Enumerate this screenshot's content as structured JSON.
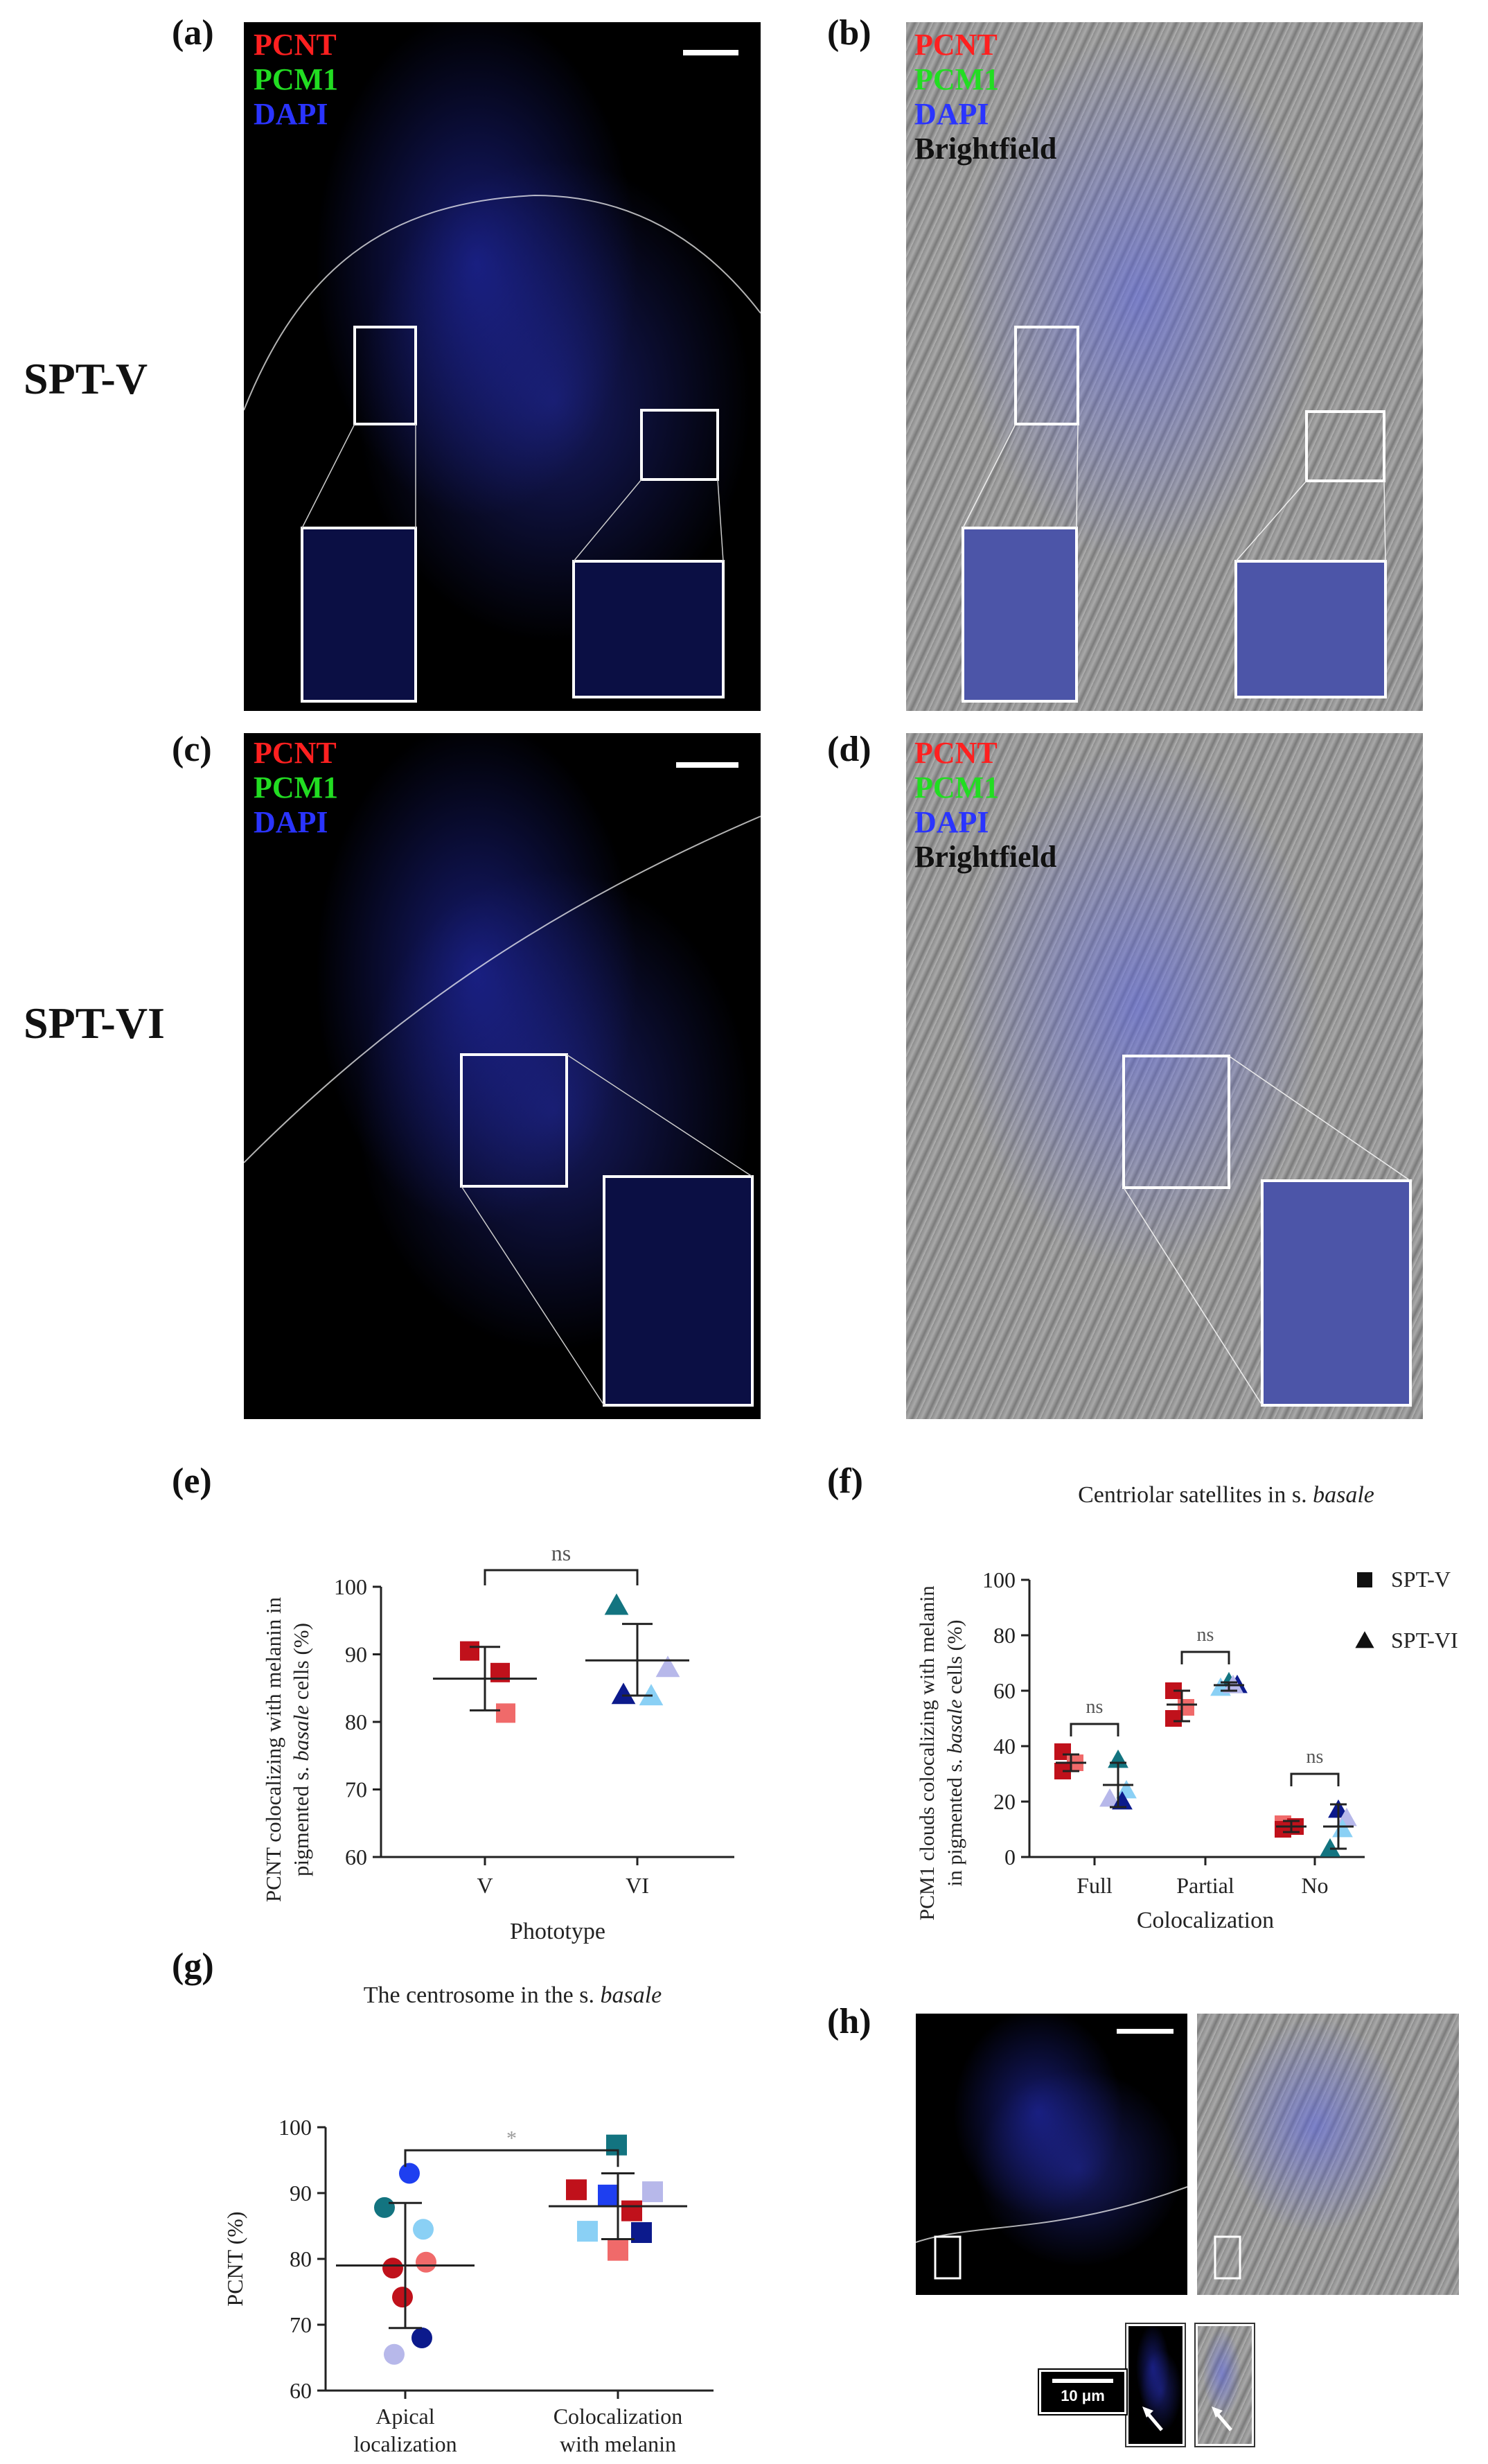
{
  "panels": {
    "a": {
      "letter": "(a)",
      "channels": [
        "PCNT",
        "PCM1",
        "DAPI"
      ]
    },
    "b": {
      "letter": "(b)",
      "channels": [
        "PCNT",
        "PCM1",
        "DAPI",
        "Brightfield"
      ]
    },
    "c": {
      "letter": "(c)",
      "channels": [
        "PCNT",
        "PCM1",
        "DAPI"
      ]
    },
    "d": {
      "letter": "(d)",
      "channels": [
        "PCNT",
        "PCM1",
        "DAPI",
        "Brightfield"
      ]
    },
    "e": {
      "letter": "(e)"
    },
    "f": {
      "letter": "(f)"
    },
    "g": {
      "letter": "(g)"
    },
    "h": {
      "letter": "(h)",
      "scalebar_label": "10 μm"
    }
  },
  "row_labels": {
    "row1": "SPT-V",
    "row2": "SPT-VI"
  },
  "colors": {
    "pcnt": "#ff2020",
    "pcm1": "#22dd22",
    "dapi": "#2a34ff",
    "dark_red": "#c0111b",
    "light_red": "#f06a6a",
    "teal": "#137480",
    "navy": "#0c1a8c",
    "light_blue": "#8ad0f5",
    "lavender": "#b7b8ea",
    "blue": "#1e3ff0"
  },
  "chart_data": [
    {
      "id": "e",
      "type": "scatter",
      "title": "",
      "xlabel": "Phototype",
      "ylabel": "PCNT colocalizing with melanin in pigmented s. basale cells (%)",
      "ylabel_line1": "PCNT colocalizing with melanin in",
      "ylabel_line2_pre": "pigmented s. ",
      "ylabel_line2_em": "basale",
      "ylabel_line2_post": " cells (%)",
      "ylim": [
        60,
        100
      ],
      "yticks": [
        60,
        70,
        80,
        90,
        100
      ],
      "categories": [
        "V",
        "VI"
      ],
      "significance": "ns",
      "series": [
        {
          "category": "V",
          "marker": "square",
          "points": [
            {
              "y": 90.5,
              "color": "#c0111b"
            },
            {
              "y": 87.3,
              "color": "#c0111b"
            },
            {
              "y": 81.3,
              "color": "#f06a6a"
            }
          ],
          "mean": 86.4,
          "sd_low": 81.7,
          "sd_high": 91.1
        },
        {
          "category": "VI",
          "marker": "triangle",
          "points": [
            {
              "y": 97.2,
              "color": "#137480"
            },
            {
              "y": 88.0,
              "color": "#b7b8ea"
            },
            {
              "y": 84.0,
              "color": "#0c1a8c"
            },
            {
              "y": 83.8,
              "color": "#8ad0f5"
            }
          ],
          "mean": 89.1,
          "sd_low": 83.9,
          "sd_high": 94.5
        }
      ]
    },
    {
      "id": "f",
      "type": "scatter",
      "title": "Centriolar satellites in s. basale",
      "title_pre": "Centriolar satellites in s. ",
      "title_em": "basale",
      "xlabel": "Colocalization",
      "ylabel": "PCM1 clouds colocalizing with melanin in pigmented s. basale cells (%)",
      "ylabel_line1": "PCM1 clouds colocalizing with melanin",
      "ylabel_line2_pre": "in pigmented s. ",
      "ylabel_line2_em": "basale",
      "ylabel_line2_post": " cells (%)",
      "ylim": [
        0,
        100
      ],
      "yticks": [
        0,
        20,
        40,
        60,
        80,
        100
      ],
      "categories": [
        "Full",
        "Partial",
        "No"
      ],
      "legend": [
        {
          "name": "SPT-V",
          "marker": "square"
        },
        {
          "name": "SPT-VI",
          "marker": "triangle"
        }
      ],
      "legend_position": "top-right",
      "groups": [
        {
          "category": "Full",
          "significance": "ns",
          "v": {
            "points": [
              {
                "y": 38,
                "color": "#c0111b"
              },
              {
                "y": 34,
                "color": "#f06a6a"
              },
              {
                "y": 31,
                "color": "#c0111b"
              }
            ],
            "mean": 34,
            "sd_low": 31,
            "sd_high": 37
          },
          "vi": {
            "points": [
              {
                "y": 35,
                "color": "#137480"
              },
              {
                "y": 24,
                "color": "#8ad0f5"
              },
              {
                "y": 21,
                "color": "#b7b8ea"
              },
              {
                "y": 20,
                "color": "#0c1a8c"
              }
            ],
            "mean": 26,
            "sd_low": 18,
            "sd_high": 34
          }
        },
        {
          "category": "Partial",
          "significance": "ns",
          "v": {
            "points": [
              {
                "y": 60,
                "color": "#c0111b"
              },
              {
                "y": 54,
                "color": "#f06a6a"
              },
              {
                "y": 50,
                "color": "#c0111b"
              }
            ],
            "mean": 55,
            "sd_low": 49,
            "sd_high": 60
          },
          "vi": {
            "points": [
              {
                "y": 63,
                "color": "#137480"
              },
              {
                "y": 62,
                "color": "#0c1a8c"
              },
              {
                "y": 61,
                "color": "#8ad0f5"
              },
              {
                "y": 62,
                "color": "#b7b8ea"
              }
            ],
            "mean": 62,
            "sd_low": 60,
            "sd_high": 63
          }
        },
        {
          "category": "No",
          "significance": "ns",
          "v": {
            "points": [
              {
                "y": 12,
                "color": "#f06a6a"
              },
              {
                "y": 11,
                "color": "#c0111b"
              },
              {
                "y": 10,
                "color": "#c0111b"
              }
            ],
            "mean": 11,
            "sd_low": 9,
            "sd_high": 13
          },
          "vi": {
            "points": [
              {
                "y": 17,
                "color": "#0c1a8c"
              },
              {
                "y": 14,
                "color": "#b7b8ea"
              },
              {
                "y": 3,
                "color": "#137480"
              },
              {
                "y": 10,
                "color": "#8ad0f5"
              }
            ],
            "mean": 11,
            "sd_low": 3,
            "sd_high": 19
          }
        }
      ]
    },
    {
      "id": "g",
      "type": "scatter",
      "title": "The centrosome in the s. basale",
      "title_pre": "The centrosome in the s. ",
      "title_em": "basale",
      "xlabel": "",
      "ylabel": "PCNT (%)",
      "ylim": [
        60,
        100
      ],
      "yticks": [
        60,
        70,
        80,
        90,
        100
      ],
      "categories": [
        "Apical localization",
        "Colocalization with melanin"
      ],
      "category_lines": [
        [
          "Apical",
          "localization"
        ],
        [
          "Colocalization",
          "with melanin"
        ]
      ],
      "significance": "*",
      "series": [
        {
          "category": "Apical localization",
          "marker": "circle",
          "points": [
            {
              "y": 93,
              "color": "#1e3ff0"
            },
            {
              "y": 87.8,
              "color": "#137480"
            },
            {
              "y": 84.5,
              "color": "#8ad0f5"
            },
            {
              "y": 79.5,
              "color": "#f06a6a"
            },
            {
              "y": 78.6,
              "color": "#c0111b"
            },
            {
              "y": 74.2,
              "color": "#c0111b"
            },
            {
              "y": 68.0,
              "color": "#0c1a8c"
            },
            {
              "y": 65.5,
              "color": "#b7b8ea"
            }
          ],
          "mean": 79,
          "sd_low": 69.5,
          "sd_high": 88.5
        },
        {
          "category": "Colocalization with melanin",
          "marker": "square",
          "points": [
            {
              "y": 97.3,
              "color": "#137480"
            },
            {
              "y": 90.5,
              "color": "#c0111b"
            },
            {
              "y": 89.7,
              "color": "#1e3ff0"
            },
            {
              "y": 90.2,
              "color": "#b7b8ea"
            },
            {
              "y": 87.3,
              "color": "#c0111b"
            },
            {
              "y": 84.2,
              "color": "#8ad0f5"
            },
            {
              "y": 84.0,
              "color": "#0c1a8c"
            },
            {
              "y": 81.3,
              "color": "#f06a6a"
            }
          ],
          "mean": 88,
          "sd_low": 83,
          "sd_high": 93
        }
      ]
    }
  ]
}
